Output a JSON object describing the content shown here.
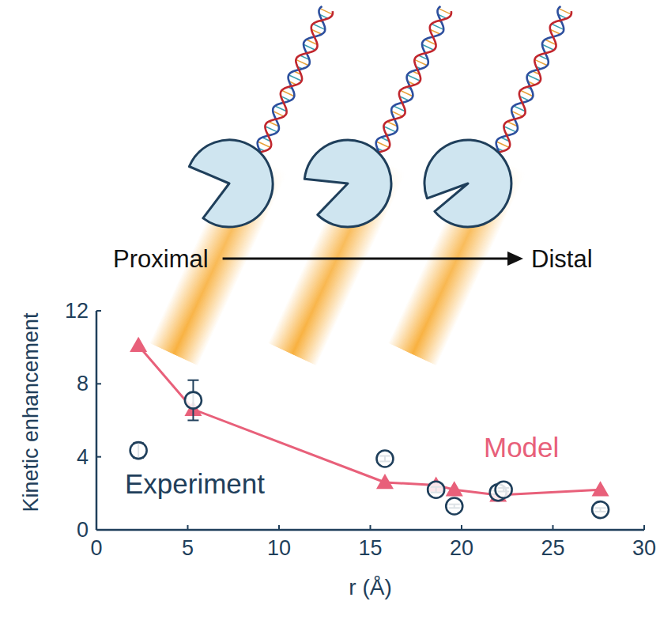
{
  "chart_data": {
    "type": "scatter",
    "x_label": "r (Å)",
    "y_label": "Kinetic enhancement",
    "annotations": [
      "Proximal",
      "Distal"
    ],
    "xlim": [
      0,
      30
    ],
    "xticks": [
      0,
      5,
      10,
      15,
      20,
      25,
      30
    ],
    "ylim": [
      0,
      12
    ],
    "yticks": [
      0,
      4,
      8,
      12
    ],
    "series": [
      {
        "name": "Experiment",
        "type": "scatter",
        "marker": "circle",
        "color": "#1f3f5b",
        "x": [
          2.3,
          5.3,
          15.8,
          18.6,
          19.6,
          22.0,
          22.3,
          27.6
        ],
        "values": [
          4.35,
          7.1,
          3.9,
          2.2,
          1.3,
          2.05,
          2.2,
          1.1
        ],
        "errors": [
          0.4,
          1.1,
          0.15,
          0.15,
          0.1,
          0.1,
          0.1,
          0.1
        ]
      },
      {
        "name": "Model",
        "type": "line",
        "marker": "triangle",
        "color": "#e8607a",
        "x": [
          2.3,
          5.3,
          15.8,
          18.6,
          19.6,
          22.0,
          27.6
        ],
        "values": [
          10.1,
          6.6,
          2.6,
          2.45,
          2.2,
          1.9,
          2.2
        ]
      }
    ]
  }
}
